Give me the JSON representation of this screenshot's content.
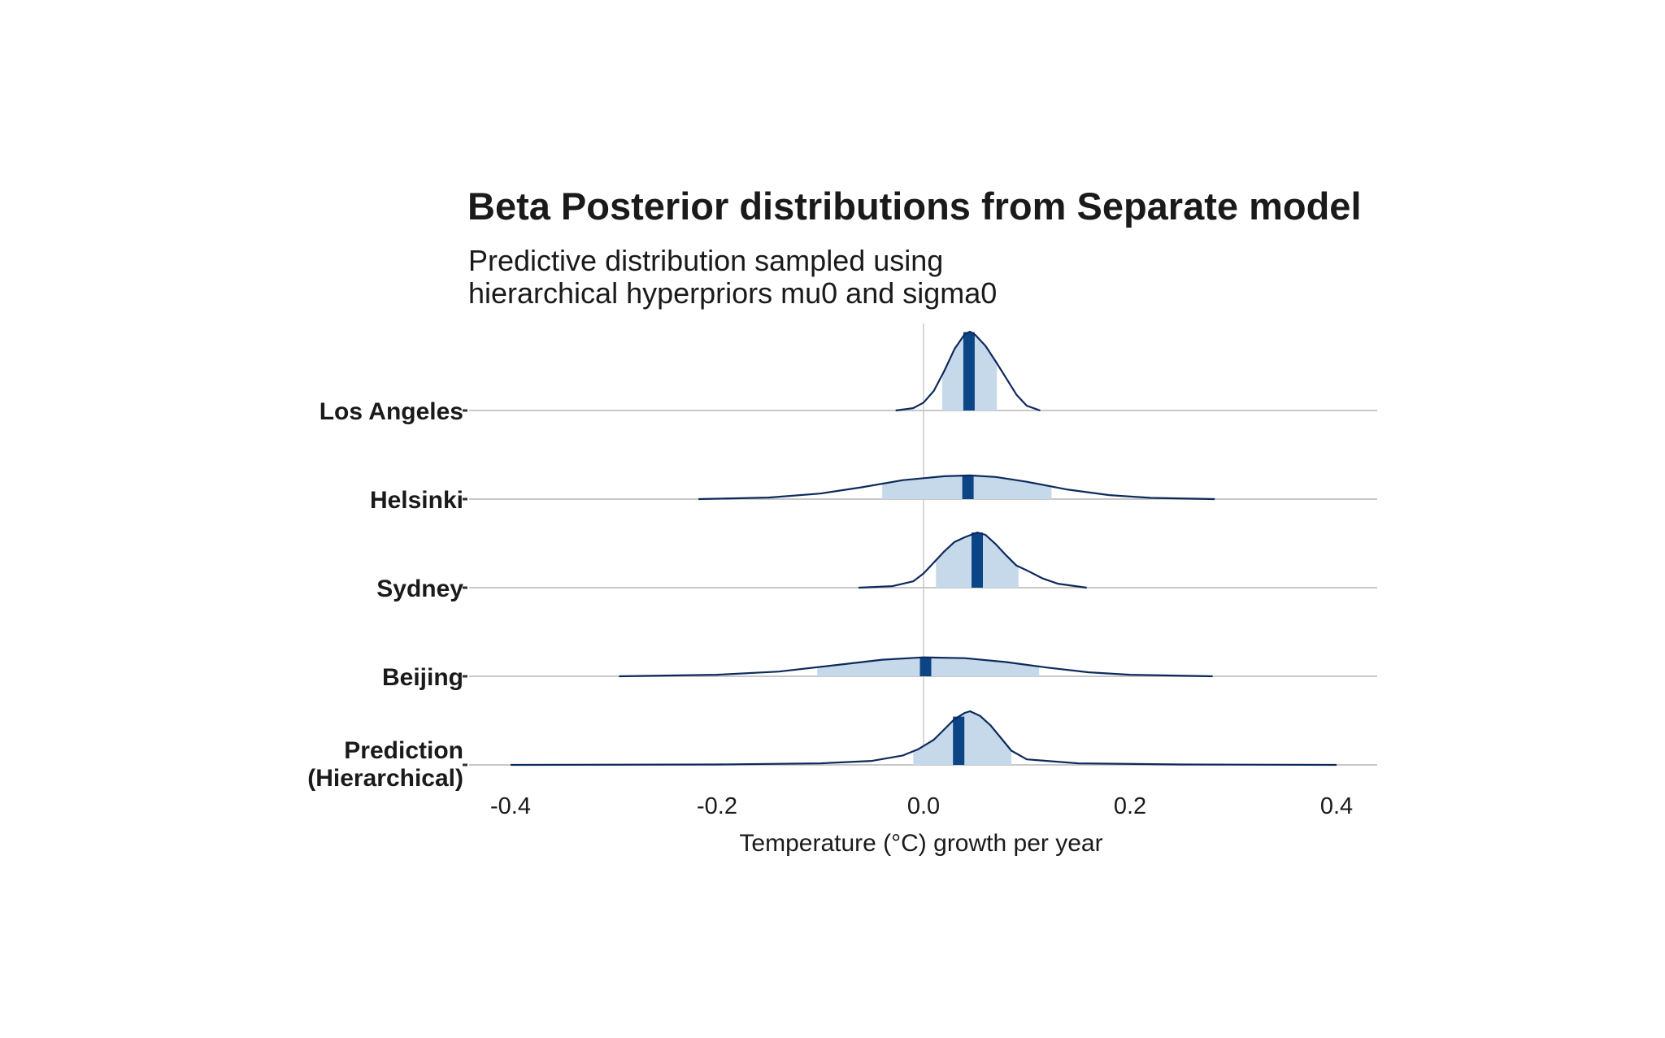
{
  "chart_data": {
    "type": "ridgeline",
    "title": "Beta Posterior distributions from Separate model",
    "subtitle": [
      "Predictive distribution sampled using",
      "hierarchical hyperpriors mu0 and sigma0"
    ],
    "xlabel": "Temperature (°C) growth per year",
    "ylabel": "",
    "xlim": [
      -0.42,
      0.44
    ],
    "x_ticks": [
      -0.4,
      -0.2,
      0.0,
      0.2,
      0.4
    ],
    "x_tick_labels": [
      "-0.4",
      "-0.2",
      "0.0",
      "0.2",
      "0.4"
    ],
    "grid": "vertical line at 0.0 only",
    "categories": [
      [
        "Los Angeles"
      ],
      [
        "Helsinki"
      ],
      [
        "Sydney"
      ],
      [
        "Beijing"
      ],
      [
        "Prediction",
        "(Hierarchical)"
      ]
    ],
    "series": [
      {
        "median": 0.044,
        "interval": [
          0.018,
          0.071
        ],
        "range": [
          -0.027,
          0.113
        ],
        "peak_density": 1.0,
        "density": [
          [
            -0.027,
            0.0
          ],
          [
            -0.01,
            0.03
          ],
          [
            0.0,
            0.1
          ],
          [
            0.01,
            0.25
          ],
          [
            0.02,
            0.5
          ],
          [
            0.03,
            0.78
          ],
          [
            0.04,
            0.97
          ],
          [
            0.045,
            1.0
          ],
          [
            0.05,
            0.96
          ],
          [
            0.06,
            0.82
          ],
          [
            0.07,
            0.62
          ],
          [
            0.08,
            0.41
          ],
          [
            0.09,
            0.2
          ],
          [
            0.1,
            0.06
          ],
          [
            0.113,
            0.0
          ]
        ]
      },
      {
        "median": 0.043,
        "interval": [
          -0.04,
          0.124
        ],
        "range": [
          -0.218,
          0.282
        ],
        "peak_density": 0.3,
        "density": [
          [
            -0.218,
            0.0
          ],
          [
            -0.15,
            0.02
          ],
          [
            -0.1,
            0.07
          ],
          [
            -0.06,
            0.15
          ],
          [
            -0.02,
            0.24
          ],
          [
            0.02,
            0.29
          ],
          [
            0.045,
            0.3
          ],
          [
            0.07,
            0.28
          ],
          [
            0.1,
            0.22
          ],
          [
            0.14,
            0.12
          ],
          [
            0.18,
            0.05
          ],
          [
            0.22,
            0.015
          ],
          [
            0.282,
            0.0
          ]
        ]
      },
      {
        "median": 0.052,
        "interval": [
          0.012,
          0.092
        ],
        "range": [
          -0.063,
          0.158
        ],
        "peak_density": 0.7,
        "density": [
          [
            -0.063,
            0.0
          ],
          [
            -0.03,
            0.02
          ],
          [
            -0.01,
            0.08
          ],
          [
            0.0,
            0.18
          ],
          [
            0.01,
            0.32
          ],
          [
            0.02,
            0.46
          ],
          [
            0.03,
            0.58
          ],
          [
            0.04,
            0.64
          ],
          [
            0.052,
            0.7
          ],
          [
            0.06,
            0.67
          ],
          [
            0.07,
            0.55
          ],
          [
            0.08,
            0.41
          ],
          [
            0.09,
            0.28
          ],
          [
            0.1,
            0.22
          ],
          [
            0.115,
            0.12
          ],
          [
            0.13,
            0.05
          ],
          [
            0.158,
            0.0
          ]
        ]
      },
      {
        "median": 0.002,
        "interval": [
          -0.103,
          0.112
        ],
        "range": [
          -0.295,
          0.28
        ],
        "peak_density": 0.24,
        "density": [
          [
            -0.295,
            0.0
          ],
          [
            -0.2,
            0.02
          ],
          [
            -0.14,
            0.06
          ],
          [
            -0.08,
            0.15
          ],
          [
            -0.04,
            0.21
          ],
          [
            0.0,
            0.24
          ],
          [
            0.04,
            0.23
          ],
          [
            0.08,
            0.18
          ],
          [
            0.12,
            0.11
          ],
          [
            0.16,
            0.05
          ],
          [
            0.2,
            0.02
          ],
          [
            0.28,
            0.0
          ]
        ]
      },
      {
        "median": 0.034,
        "interval": [
          -0.01,
          0.085
        ],
        "range": [
          -0.4,
          0.4
        ],
        "peak_density": 0.68,
        "density": [
          [
            -0.4,
            0.0
          ],
          [
            -0.2,
            0.005
          ],
          [
            -0.1,
            0.02
          ],
          [
            -0.05,
            0.05
          ],
          [
            -0.02,
            0.12
          ],
          [
            -0.005,
            0.2
          ],
          [
            0.01,
            0.32
          ],
          [
            0.02,
            0.45
          ],
          [
            0.03,
            0.58
          ],
          [
            0.04,
            0.66
          ],
          [
            0.045,
            0.68
          ],
          [
            0.055,
            0.62
          ],
          [
            0.065,
            0.5
          ],
          [
            0.075,
            0.34
          ],
          [
            0.085,
            0.18
          ],
          [
            0.1,
            0.07
          ],
          [
            0.15,
            0.02
          ],
          [
            0.25,
            0.005
          ],
          [
            0.4,
            0.0
          ]
        ]
      }
    ],
    "colors": {
      "fill": "#c6d9ea",
      "outline": "#0e2a5c",
      "median": "#0b4585",
      "baseline": "#c8c8c8",
      "zero_line": "#d8d8d8"
    }
  }
}
